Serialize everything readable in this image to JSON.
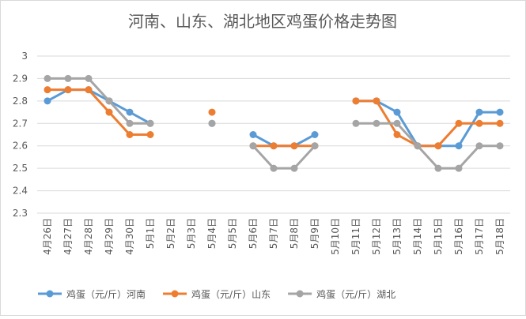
{
  "chart_data": {
    "type": "line",
    "title": "河南、山东、湖北地区鸡蛋价格走势图",
    "categories": [
      "4月26日",
      "4月27日",
      "4月28日",
      "4月29日",
      "4月30日",
      "5月1日",
      "5月2日",
      "5月3日",
      "5月4日",
      "5月5日",
      "5月6日",
      "5月7日",
      "5月8日",
      "5月9日",
      "5月10日",
      "5月11日",
      "5月12日",
      "5月13日",
      "5月14日",
      "5月15日",
      "5月16日",
      "5月17日",
      "5月18日"
    ],
    "series": [
      {
        "name": "鸡蛋（元/斤）河南",
        "color": "#5b9bd5",
        "values": [
          2.8,
          2.85,
          2.85,
          2.8,
          2.75,
          2.7,
          null,
          null,
          2.7,
          null,
          2.65,
          2.6,
          2.6,
          2.65,
          null,
          2.8,
          2.8,
          2.75,
          2.6,
          2.6,
          2.6,
          2.75,
          2.75
        ]
      },
      {
        "name": "鸡蛋（元/斤）山东",
        "color": "#ed7d31",
        "values": [
          2.85,
          2.85,
          2.85,
          2.75,
          2.65,
          2.65,
          null,
          null,
          2.75,
          null,
          2.6,
          2.6,
          2.6,
          2.6,
          null,
          2.8,
          2.8,
          2.65,
          2.6,
          2.6,
          2.7,
          2.7,
          2.7
        ]
      },
      {
        "name": "鸡蛋（元/斤）湖北",
        "color": "#a5a5a5",
        "values": [
          2.9,
          2.9,
          2.9,
          2.8,
          2.7,
          2.7,
          null,
          null,
          2.7,
          null,
          2.6,
          2.5,
          2.5,
          2.6,
          null,
          2.7,
          2.7,
          2.7,
          2.6,
          2.5,
          2.5,
          2.6,
          2.6
        ]
      }
    ],
    "ylim": [
      2.3,
      3
    ],
    "yticks": [
      2.3,
      2.4,
      2.5,
      2.6,
      2.7,
      2.8,
      2.9,
      3
    ],
    "grid": true,
    "legend": "bottom"
  }
}
